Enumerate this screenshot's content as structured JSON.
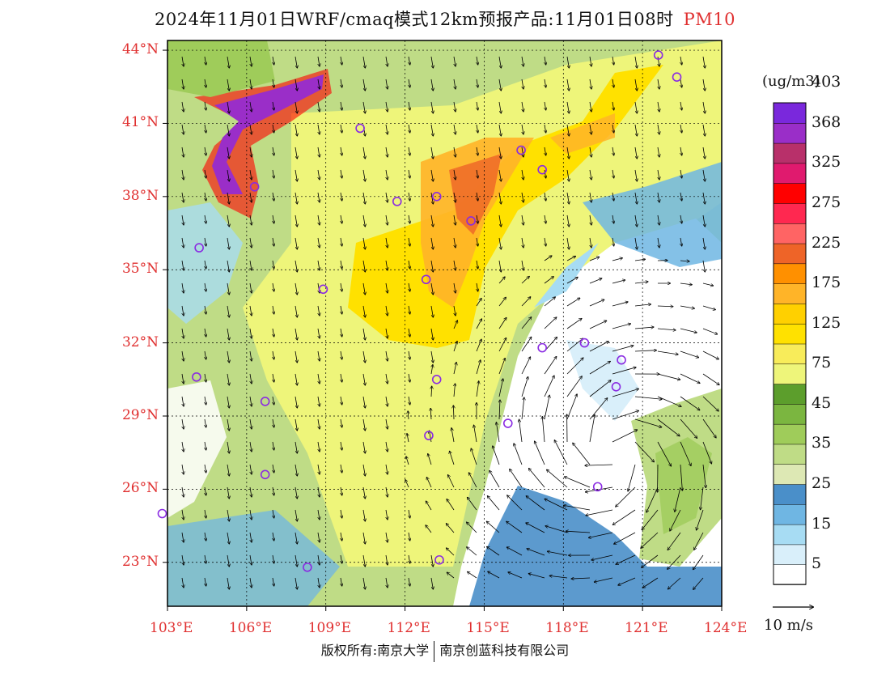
{
  "title": {
    "text": "2024年11月01日WRF/cmaq模式12km预报产品:11月01日08时",
    "variable": "PM10"
  },
  "map": {
    "lat_labels": [
      "44°N",
      "41°N",
      "38°N",
      "35°N",
      "32°N",
      "29°N",
      "26°N",
      "23°N"
    ],
    "lon_labels": [
      "103°E",
      "106°E",
      "109°E",
      "112°E",
      "115°E",
      "118°E",
      "121°E",
      "124°E"
    ],
    "lat_values": [
      44,
      41,
      38,
      35,
      32,
      29,
      26,
      23
    ],
    "lon_values": [
      103,
      106,
      109,
      112,
      115,
      118,
      121,
      124
    ],
    "extent": {
      "lon_min": 103,
      "lon_max": 124,
      "lat_min": 21.2,
      "lat_max": 44.4
    },
    "city_markers": [
      {
        "lon": 110.3,
        "lat": 40.8
      },
      {
        "lon": 116.4,
        "lat": 39.9
      },
      {
        "lon": 117.2,
        "lat": 39.1
      },
      {
        "lon": 106.3,
        "lat": 38.4
      },
      {
        "lon": 111.7,
        "lat": 37.8
      },
      {
        "lon": 113.2,
        "lat": 38.0
      },
      {
        "lon": 114.5,
        "lat": 37.0
      },
      {
        "lon": 104.2,
        "lat": 35.9
      },
      {
        "lon": 112.8,
        "lat": 34.6
      },
      {
        "lon": 108.9,
        "lat": 34.2
      },
      {
        "lon": 118.8,
        "lat": 32.0
      },
      {
        "lon": 117.2,
        "lat": 31.8
      },
      {
        "lon": 120.2,
        "lat": 31.3
      },
      {
        "lon": 104.1,
        "lat": 30.6
      },
      {
        "lon": 113.2,
        "lat": 30.5
      },
      {
        "lon": 120.0,
        "lat": 30.2
      },
      {
        "lon": 106.7,
        "lat": 29.6
      },
      {
        "lon": 115.9,
        "lat": 28.7
      },
      {
        "lon": 112.9,
        "lat": 28.2
      },
      {
        "lon": 119.3,
        "lat": 26.1
      },
      {
        "lon": 106.7,
        "lat": 26.6
      },
      {
        "lon": 102.8,
        "lat": 25.0
      },
      {
        "lon": 108.3,
        "lat": 22.8
      },
      {
        "lon": 113.3,
        "lat": 23.1
      },
      {
        "lon": 121.6,
        "lat": 43.8
      },
      {
        "lon": 122.3,
        "lat": 42.9
      }
    ]
  },
  "colorbar": {
    "unit": "(ug/m3)",
    "colors": [
      "#ffffff",
      "#d9effa",
      "#a7dcf3",
      "#6fb6e3",
      "#4a8fc9",
      "#dde8b4",
      "#bfdc86",
      "#9fcc5a",
      "#7bb640",
      "#5c9e2c",
      "#eef57a",
      "#f8ec5a",
      "#ffe100",
      "#ffd000",
      "#ffb428",
      "#ff9000",
      "#ee6428",
      "#ff6464",
      "#ff2850",
      "#ff0000",
      "#e01a6e",
      "#b8306a",
      "#9a2ec8",
      "#7a28dc"
    ],
    "labels": [
      "5",
      "15",
      "25",
      "35",
      "45",
      "75",
      "125",
      "175",
      "225",
      "275",
      "325",
      "368",
      "403"
    ]
  },
  "footer": {
    "left": "版权所有:南京大学",
    "right": "南京创蓝科技有限公司"
  },
  "vector_legend": {
    "label": "10 m/s"
  }
}
